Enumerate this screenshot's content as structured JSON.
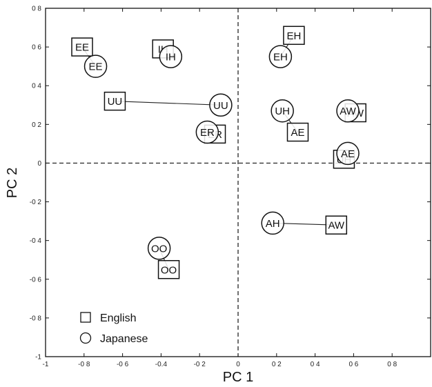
{
  "chart_data": {
    "type": "scatter",
    "xlabel": "PC 1",
    "ylabel": "PC 2",
    "xlim": [
      -1,
      1
    ],
    "ylim": [
      -1,
      0.8
    ],
    "xticks": [
      -1,
      -0.8,
      -0.6,
      -0.4,
      -0.2,
      0,
      0.2,
      0.4,
      0.6,
      0.8
    ],
    "yticks": [
      -1,
      -0.8,
      -0.6,
      -0.4,
      -0.2,
      0,
      0.2,
      0.4,
      0.6,
      0.8
    ],
    "xtick_labels": [
      "-1",
      "-0 8",
      "-0 6",
      "-0.4",
      "-0 2",
      "0",
      "0 2",
      "0 4",
      "0 6",
      "0 8"
    ],
    "ytick_labels": [
      "-1",
      "-0 8",
      "-0 6",
      "-0 4",
      "-0 2",
      "0",
      "0 2",
      "0 4",
      "0 6",
      "0 8"
    ],
    "grid": false,
    "reference_lines": {
      "x0": true,
      "y0": true,
      "style": "dashed"
    },
    "legend_position": "bottom-left",
    "series": [
      {
        "name": "English",
        "marker": "square",
        "points": [
          {
            "label": "EE",
            "x": -0.81,
            "y": 0.6
          },
          {
            "label": "IH",
            "x": -0.39,
            "y": 0.59
          },
          {
            "label": "UU",
            "x": -0.64,
            "y": 0.32
          },
          {
            "label": "ER",
            "x": -0.12,
            "y": 0.15
          },
          {
            "label": "EH",
            "x": 0.29,
            "y": 0.66
          },
          {
            "label": "AE",
            "x": 0.31,
            "y": 0.16
          },
          {
            "label": "AW",
            "x": 0.61,
            "y": 0.26
          },
          {
            "label": "UH",
            "x": 0.55,
            "y": 0.02
          },
          {
            "label": "AW",
            "x": 0.51,
            "y": -0.32
          },
          {
            "label": "OO",
            "x": -0.36,
            "y": -0.55
          }
        ]
      },
      {
        "name": "Japanese",
        "marker": "circle",
        "points": [
          {
            "label": "EE",
            "x": -0.74,
            "y": 0.5
          },
          {
            "label": "IH",
            "x": -0.35,
            "y": 0.55
          },
          {
            "label": "UU",
            "x": -0.09,
            "y": 0.3
          },
          {
            "label": "ER",
            "x": -0.16,
            "y": 0.16
          },
          {
            "label": "EH",
            "x": 0.22,
            "y": 0.55
          },
          {
            "label": "UH",
            "x": 0.23,
            "y": 0.27
          },
          {
            "label": "AW",
            "x": 0.57,
            "y": 0.27
          },
          {
            "label": "AE",
            "x": 0.57,
            "y": 0.05
          },
          {
            "label": "AH",
            "x": 0.18,
            "y": -0.31
          },
          {
            "label": "OO",
            "x": -0.41,
            "y": -0.44
          }
        ]
      }
    ],
    "connections": [
      {
        "from": "EE",
        "to": "EE"
      },
      {
        "from": "IH",
        "to": "IH"
      },
      {
        "from": "UU",
        "to": "UU"
      },
      {
        "from": "ER",
        "to": "ER"
      },
      {
        "from": "EH",
        "to": "EH"
      },
      {
        "from": "AE",
        "to": "AE"
      },
      {
        "from": "AW",
        "to": "AW"
      },
      {
        "from": "UH",
        "to": "UH"
      },
      {
        "from": "AW",
        "to": "AH"
      },
      {
        "from": "OO",
        "to": "OO"
      }
    ]
  },
  "legend": {
    "english_label": "English",
    "japanese_label": "Japanese"
  }
}
